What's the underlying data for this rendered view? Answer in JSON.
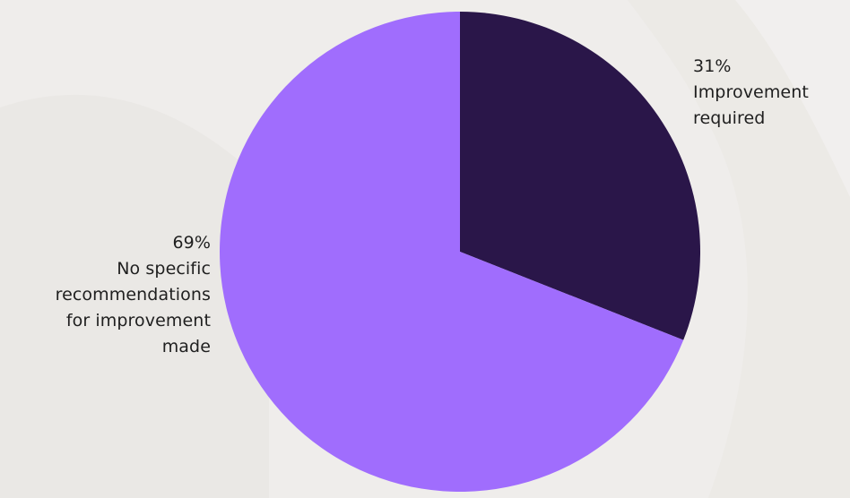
{
  "colors": {
    "background": "#efedeb",
    "slice_improvement": "#2a1649",
    "slice_no_recommendations": "#a06dfd"
  },
  "chart_data": {
    "type": "pie",
    "title": "",
    "start_angle_deg": 0,
    "direction": "clockwise",
    "slices": [
      {
        "name": "Improvement required",
        "value": 31,
        "percent_label": "31%",
        "label_lines": [
          "Improvement",
          "required"
        ],
        "color": "#2a1649"
      },
      {
        "name": "No specific recommendations for improvement made",
        "value": 69,
        "percent_label": "69%",
        "label_lines": [
          "No specific",
          "recommendations",
          "for improvement",
          "made"
        ],
        "color": "#a06dfd"
      }
    ]
  }
}
